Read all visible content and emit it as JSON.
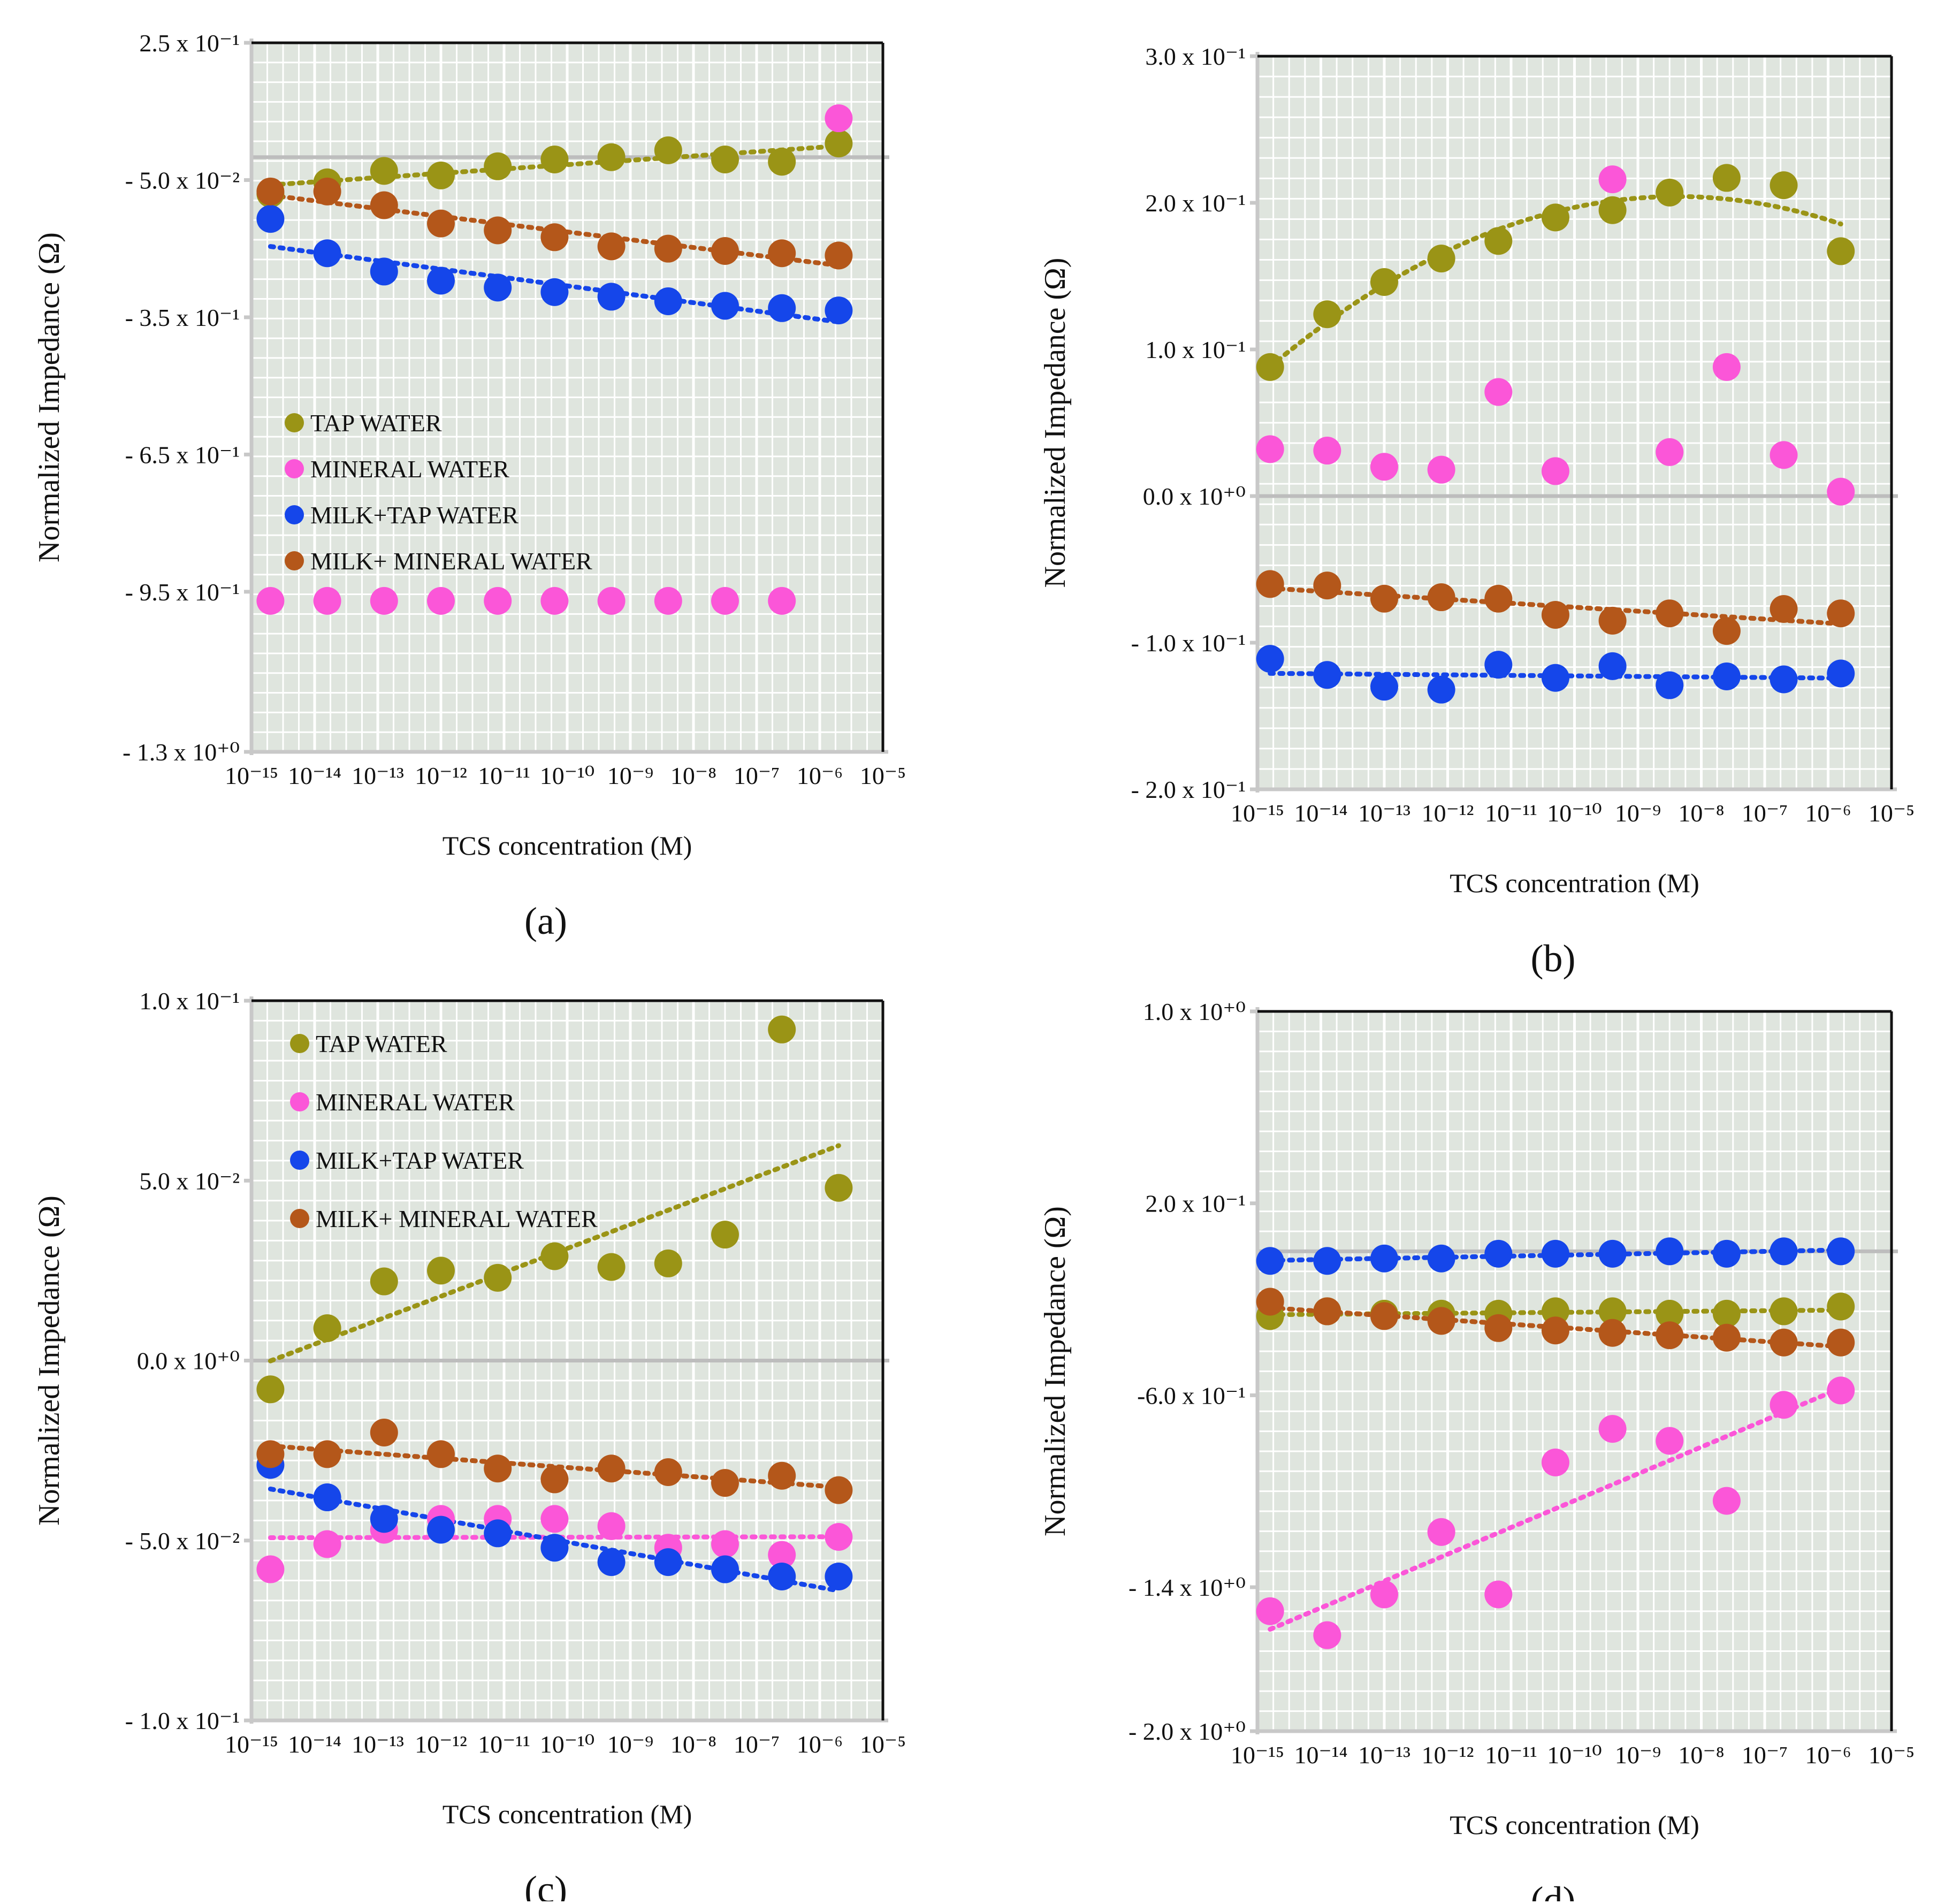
{
  "colors": {
    "tap": "#9a9416",
    "mineral": "#fb56d8",
    "milk_tap": "#1546ea",
    "milk_mineral": "#b4571a",
    "plot_bg": "#dfe5de",
    "grid": "#ffffff",
    "frame": "#111111",
    "zero_line": "#bdbdbd"
  },
  "chart_data": [
    {
      "id": "a",
      "panel_label": "(a)",
      "type": "scatter",
      "xscale": "log",
      "title": "",
      "xlabel": "TCS concentration (M)",
      "ylabel": "Normalized Impedance (Ω)",
      "ylim": [
        -1.3,
        0.25
      ],
      "xlim_exp": [
        -15,
        -5
      ],
      "x_exponents": [
        -15,
        -14,
        -13,
        -12,
        -11,
        -10,
        -9,
        -8,
        -7,
        -6,
        -5
      ],
      "y_ticks": [
        {
          "value": 0.25,
          "label": "2.5 x 10⁻¹"
        },
        {
          "value": -0.05,
          "label": "- 5.0 x 10⁻²"
        },
        {
          "value": -0.35,
          "label": "- 3.5 x 10⁻¹"
        },
        {
          "value": -0.65,
          "label": "- 6.5 x 10⁻¹"
        },
        {
          "value": -0.95,
          "label": "- 9.5 x 10⁻¹"
        },
        {
          "value": -1.3,
          "label": "- 1.3 x 10⁺⁰"
        }
      ],
      "zero_line_value": 0.0,
      "legend_position": "middle-left",
      "legend": [
        "TAP WATER",
        "MINERAL WATER",
        "MILK+TAP WATER",
        "MILK+ MINERAL WATER"
      ],
      "series": [
        {
          "key": "tap",
          "name": "TAP WATER",
          "trend": true,
          "x": [
            -14.7,
            -13.8,
            -12.9,
            -12.0,
            -11.1,
            -10.2,
            -9.3,
            -8.4,
            -7.5,
            -6.6,
            -5.7
          ],
          "y": [
            -0.08,
            -0.055,
            -0.03,
            -0.04,
            -0.02,
            -0.005,
            -0.0,
            0.015,
            -0.005,
            -0.01,
            0.03
          ]
        },
        {
          "key": "mineral",
          "name": "MINERAL WATER",
          "trend": false,
          "x": [
            -14.7,
            -13.8,
            -12.9,
            -12.0,
            -11.1,
            -10.2,
            -9.3,
            -8.4,
            -7.5,
            -6.6,
            -5.7
          ],
          "y": [
            -0.97,
            -0.97,
            -0.97,
            -0.97,
            -0.97,
            -0.97,
            -0.97,
            -0.97,
            -0.97,
            -0.97,
            0.085
          ]
        },
        {
          "key": "milk_tap",
          "name": "MILK+TAP WATER",
          "trend": true,
          "x": [
            -14.7,
            -13.8,
            -12.9,
            -12.0,
            -11.1,
            -10.2,
            -9.3,
            -8.4,
            -7.5,
            -6.6,
            -5.7
          ],
          "y": [
            -0.135,
            -0.21,
            -0.25,
            -0.27,
            -0.285,
            -0.295,
            -0.305,
            -0.315,
            -0.325,
            -0.33,
            -0.335
          ]
        },
        {
          "key": "milk_mineral",
          "name": "MILK+ MINERAL WATER",
          "trend": true,
          "x": [
            -14.7,
            -13.8,
            -12.9,
            -12.0,
            -11.1,
            -10.2,
            -9.3,
            -8.4,
            -7.5,
            -6.6,
            -5.7
          ],
          "y": [
            -0.075,
            -0.075,
            -0.105,
            -0.145,
            -0.16,
            -0.175,
            -0.195,
            -0.2,
            -0.205,
            -0.21,
            -0.215
          ]
        }
      ]
    },
    {
      "id": "b",
      "panel_label": "(b)",
      "type": "scatter",
      "xscale": "log",
      "title": "",
      "xlabel": "TCS concentration (M)",
      "ylabel": "Normalized Impedance (Ω)",
      "ylim": [
        -0.2,
        0.3
      ],
      "xlim_exp": [
        -15,
        -5
      ],
      "x_exponents": [
        -15,
        -14,
        -13,
        -12,
        -11,
        -10,
        -9,
        -8,
        -7,
        -6,
        -5
      ],
      "y_ticks": [
        {
          "value": 0.3,
          "label": "3.0 x 10⁻¹"
        },
        {
          "value": 0.2,
          "label": "2.0 x 10⁻¹"
        },
        {
          "value": 0.1,
          "label": "1.0 x 10⁻¹"
        },
        {
          "value": 0.0,
          "label": "0.0 x 10⁺⁰"
        },
        {
          "value": -0.1,
          "label": "- 1.0 x 10⁻¹"
        },
        {
          "value": -0.2,
          "label": "- 2.0 x 10⁻¹"
        }
      ],
      "zero_line_value": 0.0,
      "legend_position": "none",
      "legend": [],
      "series": [
        {
          "key": "tap",
          "name": "TAP WATER",
          "trend": true,
          "x": [
            -14.8,
            -13.9,
            -13.0,
            -12.1,
            -11.2,
            -10.3,
            -9.4,
            -8.5,
            -7.6,
            -6.7,
            -5.8
          ],
          "y": [
            0.088,
            0.124,
            0.146,
            0.162,
            0.174,
            0.19,
            0.195,
            0.207,
            0.217,
            0.212,
            0.167
          ]
        },
        {
          "key": "mineral",
          "name": "MINERAL WATER",
          "trend": false,
          "x": [
            -14.8,
            -13.9,
            -13.0,
            -12.1,
            -11.2,
            -10.3,
            -9.4,
            -8.5,
            -7.6,
            -6.7,
            -5.8
          ],
          "y": [
            0.032,
            0.031,
            0.02,
            0.018,
            0.071,
            0.017,
            0.216,
            0.03,
            0.088,
            0.028,
            0.003
          ]
        },
        {
          "key": "milk_tap",
          "name": "MILK+TAP WATER",
          "trend": true,
          "x": [
            -14.8,
            -13.9,
            -13.0,
            -12.1,
            -11.2,
            -10.3,
            -9.4,
            -8.5,
            -7.6,
            -6.7,
            -5.8
          ],
          "y": [
            -0.111,
            -0.122,
            -0.13,
            -0.132,
            -0.115,
            -0.124,
            -0.116,
            -0.129,
            -0.123,
            -0.125,
            -0.121
          ]
        },
        {
          "key": "milk_mineral",
          "name": "MILK+ MINERAL WATER",
          "trend": true,
          "x": [
            -14.8,
            -13.9,
            -13.0,
            -12.1,
            -11.2,
            -10.3,
            -9.4,
            -8.5,
            -7.6,
            -6.7,
            -5.8
          ],
          "y": [
            -0.06,
            -0.061,
            -0.07,
            -0.069,
            -0.07,
            -0.081,
            -0.085,
            -0.08,
            -0.092,
            -0.077,
            -0.08
          ]
        }
      ]
    },
    {
      "id": "c",
      "panel_label": "(c)",
      "type": "scatter",
      "xscale": "log",
      "title": "",
      "xlabel": "TCS concentration (M)",
      "ylabel": "Normalized Impedance (Ω)",
      "ylim": [
        -0.1,
        0.1
      ],
      "xlim_exp": [
        -15,
        -5
      ],
      "x_exponents": [
        -15,
        -14,
        -13,
        -12,
        -11,
        -10,
        -9,
        -8,
        -7,
        -6,
        -5
      ],
      "y_ticks": [
        {
          "value": 0.1,
          "label": "1.0 x 10⁻¹"
        },
        {
          "value": 0.05,
          "label": "5.0 x 10⁻²"
        },
        {
          "value": 0.0,
          "label": "0.0 x 10⁺⁰"
        },
        {
          "value": -0.05,
          "label": "- 5.0 x 10⁻²"
        },
        {
          "value": -0.1,
          "label": "- 1.0 x 10⁻¹"
        }
      ],
      "zero_line_value": 0.0,
      "legend_position": "top-left",
      "legend": [
        "TAP WATER",
        "MINERAL WATER",
        "MILK+TAP WATER",
        "MILK+ MINERAL WATER"
      ],
      "series": [
        {
          "key": "tap",
          "name": "TAP WATER",
          "trend": true,
          "x": [
            -14.7,
            -13.8,
            -12.9,
            -12.0,
            -11.1,
            -10.2,
            -9.3,
            -8.4,
            -7.5,
            -6.6,
            -5.7
          ],
          "y": [
            -0.008,
            0.009,
            0.022,
            0.025,
            0.023,
            0.029,
            0.026,
            0.027,
            0.035,
            0.092,
            0.048
          ]
        },
        {
          "key": "mineral",
          "name": "MINERAL WATER",
          "trend": true,
          "x": [
            -14.7,
            -13.8,
            -12.9,
            -12.0,
            -11.1,
            -10.2,
            -9.3,
            -8.4,
            -7.5,
            -6.6,
            -5.7
          ],
          "y": [
            -0.058,
            -0.051,
            -0.047,
            -0.044,
            -0.044,
            -0.044,
            -0.046,
            -0.052,
            -0.051,
            -0.054,
            -0.049
          ]
        },
        {
          "key": "milk_tap",
          "name": "MILK+TAP WATER",
          "trend": true,
          "x": [
            -14.7,
            -13.8,
            -12.9,
            -12.0,
            -11.1,
            -10.2,
            -9.3,
            -8.4,
            -7.5,
            -6.6,
            -5.7
          ],
          "y": [
            -0.029,
            -0.038,
            -0.044,
            -0.047,
            -0.048,
            -0.052,
            -0.056,
            -0.056,
            -0.058,
            -0.06,
            -0.06
          ]
        },
        {
          "key": "milk_mineral",
          "name": "MILK+ MINERAL WATER",
          "trend": true,
          "x": [
            -14.7,
            -13.8,
            -12.9,
            -12.0,
            -11.1,
            -10.2,
            -9.3,
            -8.4,
            -7.5,
            -6.6,
            -5.7
          ],
          "y": [
            -0.026,
            -0.026,
            -0.02,
            -0.026,
            -0.03,
            -0.033,
            -0.03,
            -0.031,
            -0.034,
            -0.032,
            -0.036
          ]
        }
      ]
    },
    {
      "id": "d",
      "panel_label": "(d)",
      "type": "scatter",
      "xscale": "log",
      "title": "",
      "xlabel": "TCS concentration (M)",
      "ylabel": "Normalized Impedance (Ω)",
      "ylim": [
        -2.0,
        1.0
      ],
      "xlim_exp": [
        -15,
        -5
      ],
      "x_exponents": [
        -15,
        -14,
        -13,
        -12,
        -11,
        -10,
        -9,
        -8,
        -7,
        -6,
        -5
      ],
      "y_ticks": [
        {
          "value": 1.0,
          "label": "1.0 x 10⁺⁰"
        },
        {
          "value": 0.2,
          "label": "2.0 x 10⁻¹"
        },
        {
          "value": -0.6,
          "label": "-6.0 x 10⁻¹"
        },
        {
          "value": -1.4,
          "label": "- 1.4 x 10⁺⁰"
        },
        {
          "value": -2.0,
          "label": "- 2.0 x 10⁺⁰"
        }
      ],
      "zero_line_value": 0.0,
      "legend_position": "none",
      "legend": [],
      "series": [
        {
          "key": "tap",
          "name": "TAP WATER",
          "trend": true,
          "x": [
            -14.8,
            -13.9,
            -13.0,
            -12.1,
            -11.2,
            -10.3,
            -9.4,
            -8.5,
            -7.6,
            -6.7,
            -5.8
          ],
          "y": [
            -0.27,
            -0.25,
            -0.26,
            -0.26,
            -0.26,
            -0.25,
            -0.25,
            -0.26,
            -0.26,
            -0.25,
            -0.23
          ]
        },
        {
          "key": "mineral",
          "name": "MINERAL WATER",
          "trend": true,
          "x": [
            -14.8,
            -13.9,
            -13.0,
            -12.1,
            -11.2,
            -10.3,
            -9.4,
            -8.5,
            -7.6,
            -6.7,
            -5.8
          ],
          "y": [
            -1.5,
            -1.6,
            -1.43,
            -1.17,
            -1.43,
            -0.88,
            -0.74,
            -0.79,
            -1.04,
            -0.64,
            -0.58
          ]
        },
        {
          "key": "milk_tap",
          "name": "MILK+TAP WATER",
          "trend": true,
          "x": [
            -14.8,
            -13.9,
            -13.0,
            -12.1,
            -11.2,
            -10.3,
            -9.4,
            -8.5,
            -7.6,
            -6.7,
            -5.8
          ],
          "y": [
            -0.04,
            -0.04,
            -0.03,
            -0.03,
            -0.01,
            -0.01,
            -0.01,
            0.0,
            -0.01,
            0.0,
            0.0
          ]
        },
        {
          "key": "milk_mineral",
          "name": "MILK+ MINERAL WATER",
          "trend": true,
          "x": [
            -14.8,
            -13.9,
            -13.0,
            -12.1,
            -11.2,
            -10.3,
            -9.4,
            -8.5,
            -7.6,
            -6.7,
            -5.8
          ],
          "y": [
            -0.21,
            -0.25,
            -0.27,
            -0.29,
            -0.32,
            -0.33,
            -0.34,
            -0.35,
            -0.36,
            -0.38,
            -0.38
          ]
        }
      ]
    }
  ]
}
